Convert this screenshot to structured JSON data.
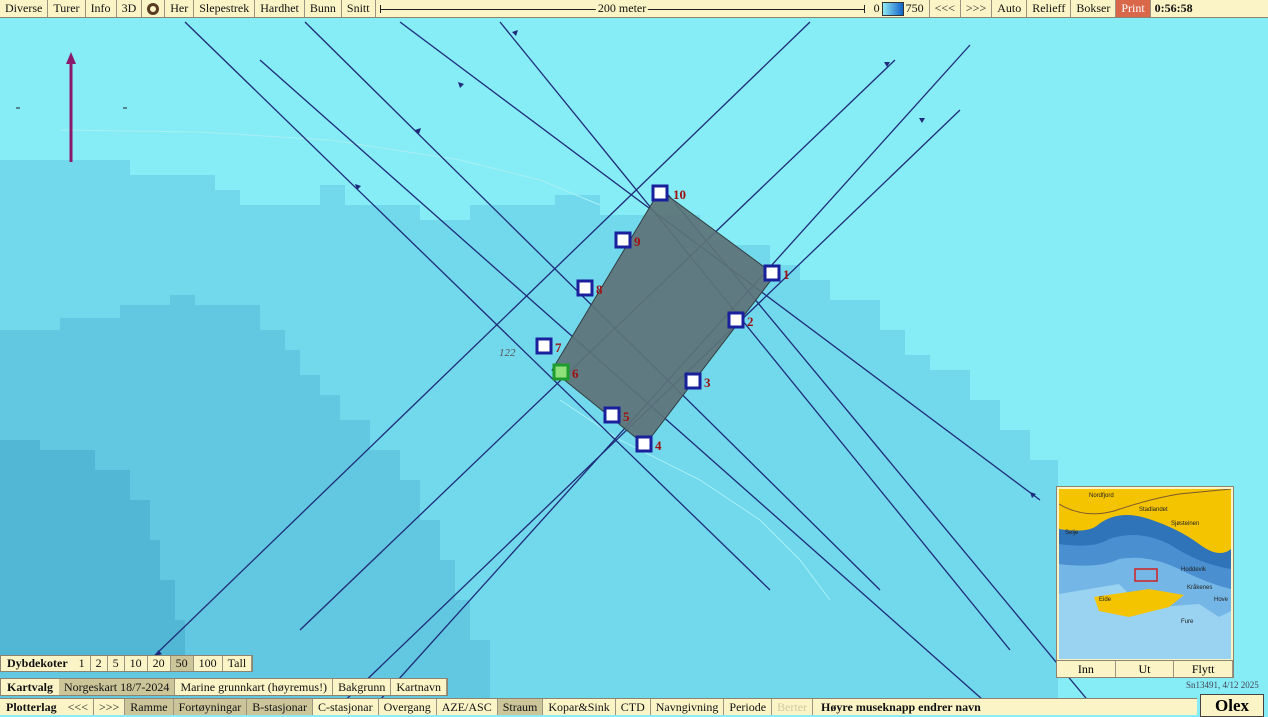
{
  "top_bar": {
    "buttons": [
      "Diverse",
      "Turer",
      "Info",
      "3D"
    ],
    "buttons2": [
      "Her",
      "Slepestrek",
      "Hardhet",
      "Bunn",
      "Snitt"
    ],
    "scale_label": "200 meter",
    "depth_min": "0",
    "depth_max": "750",
    "nav_prev": "<<<",
    "nav_next": ">>>",
    "right_buttons": [
      "Auto",
      "Relieff",
      "Bokser"
    ],
    "print_label": "Print",
    "clock": "0:56:58"
  },
  "map": {
    "depth_label": "122",
    "waypoints": [
      "1",
      "2",
      "3",
      "4",
      "5",
      "6",
      "7",
      "8",
      "9",
      "10"
    ],
    "colors": {
      "water": "#86ecf6",
      "deep": "#6fd2e8",
      "deeper": "#58bcd6",
      "polygon": "#5d7377",
      "marker": "#1a1f9c",
      "selected": "#1e9c2e",
      "label": "#a01010"
    }
  },
  "minimap": {
    "labels": [
      "Nordfjord",
      "Stadlandet",
      "Sjøsteinen",
      "Selje",
      "Hoddevik",
      "Kråkenes",
      "Eide",
      "Hove",
      "Fure"
    ],
    "buttons": [
      "Inn",
      "Ut",
      "Flytt"
    ],
    "serial": "Sn13491, 4/12 2025"
  },
  "dybdekoter": {
    "title": "Dybdekoter",
    "items": [
      "1",
      "2",
      "5",
      "10",
      "20",
      "50",
      "100",
      "Tall"
    ],
    "active": "50"
  },
  "kartvalg": {
    "title": "Kartvalg",
    "items": [
      "Norgeskart 18/7-2024",
      "Marine grunnkart (høyremus!)",
      "Bakgrunn",
      "Kartnavn"
    ]
  },
  "plotterlag": {
    "title": "Plotterlag",
    "prev": "<<<",
    "next": ">>>",
    "items": [
      "Ramme",
      "Fortøyningar",
      "B-stasjonar",
      "C-stasjonar",
      "Overgang",
      "AZE/ASC",
      "Straum",
      "Kopar&Sink",
      "CTD",
      "Navngivning",
      "Periode",
      "Berter"
    ],
    "hint": "Høyre museknapp endrer navn"
  },
  "logo": "Olex"
}
